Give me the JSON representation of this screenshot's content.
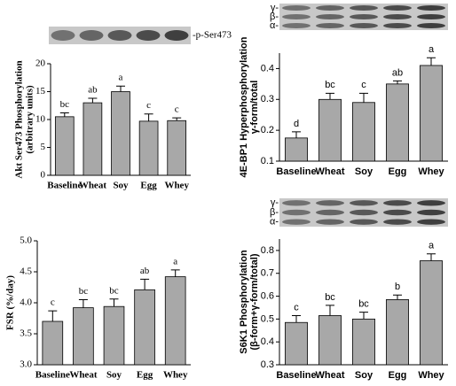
{
  "chart_data": [
    {
      "type": "bar",
      "ylabel": [
        "Akt Ser473 Phosphorylation",
        "(arbitrary units)"
      ],
      "blot_labels": [
        "-p-Ser473"
      ],
      "categories": [
        "Baseline",
        "Wheat",
        "Soy",
        "Egg",
        "Whey"
      ],
      "values": [
        10.5,
        13,
        15,
        9.7,
        9.8
      ],
      "errors": [
        0.7,
        0.8,
        1.0,
        1.3,
        0.5
      ],
      "annotations": [
        "bc",
        "ab",
        "a",
        "c",
        "c"
      ],
      "color": "#a8a8a8",
      "ylim": [
        0,
        20
      ],
      "yticks": [
        0,
        5,
        10,
        15,
        20
      ]
    },
    {
      "type": "bar",
      "ylabel": [
        "4E-BP1 Hyperphosphorylation",
        "γ-form/total"
      ],
      "blot_labels": [
        "γ-",
        "β-",
        "α-"
      ],
      "categories": [
        "Baseline",
        "Wheat",
        "Soy",
        "Egg",
        "Whey"
      ],
      "values": [
        0.175,
        0.3,
        0.29,
        0.35,
        0.41
      ],
      "errors": [
        0.02,
        0.02,
        0.03,
        0.01,
        0.025
      ],
      "annotations": [
        "d",
        "bc",
        "c",
        "ab",
        "a"
      ],
      "color": "#a8a8a8",
      "ylim": [
        0.1,
        0.45
      ],
      "yticks": [
        0.1,
        0.2,
        0.3,
        0.4
      ]
    },
    {
      "type": "bar",
      "ylabel": [
        "FSR (%/day)"
      ],
      "categories": [
        "Baseline",
        "Wheat",
        "Soy",
        "Egg",
        "Whey"
      ],
      "values": [
        3.7,
        3.92,
        3.94,
        4.21,
        4.42
      ],
      "errors": [
        0.17,
        0.13,
        0.12,
        0.17,
        0.11
      ],
      "annotations": [
        "c",
        "bc",
        "bc",
        "ab",
        "a"
      ],
      "color": "#a8a8a8",
      "ylim": [
        3.0,
        5.0
      ],
      "yticks": [
        {
          "value": 3.0,
          "label": "3.0"
        },
        3.5,
        {
          "value": 4.0,
          "label": "4.0"
        },
        4.5,
        {
          "value": 5.0,
          "label": "5.0"
        }
      ]
    },
    {
      "type": "bar",
      "ylabel": [
        "S6K1 Phosphorylation",
        "(β-form+γ-form/total)"
      ],
      "blot_labels": [
        "γ-",
        "β-",
        "α-"
      ],
      "categories": [
        "Baseline",
        "Wheat",
        "Soy",
        "Egg",
        "Whey"
      ],
      "values": [
        0.485,
        0.515,
        0.5,
        0.585,
        0.755
      ],
      "errors": [
        0.03,
        0.045,
        0.03,
        0.02,
        0.03
      ],
      "annotations": [
        "c",
        "bc",
        "bc",
        "b",
        "a"
      ],
      "color": "#a8a8a8",
      "ylim": [
        0.3,
        0.85
      ],
      "yticks": [
        0.3,
        0.4,
        0.5,
        0.6,
        0.7,
        0.8
      ]
    }
  ]
}
